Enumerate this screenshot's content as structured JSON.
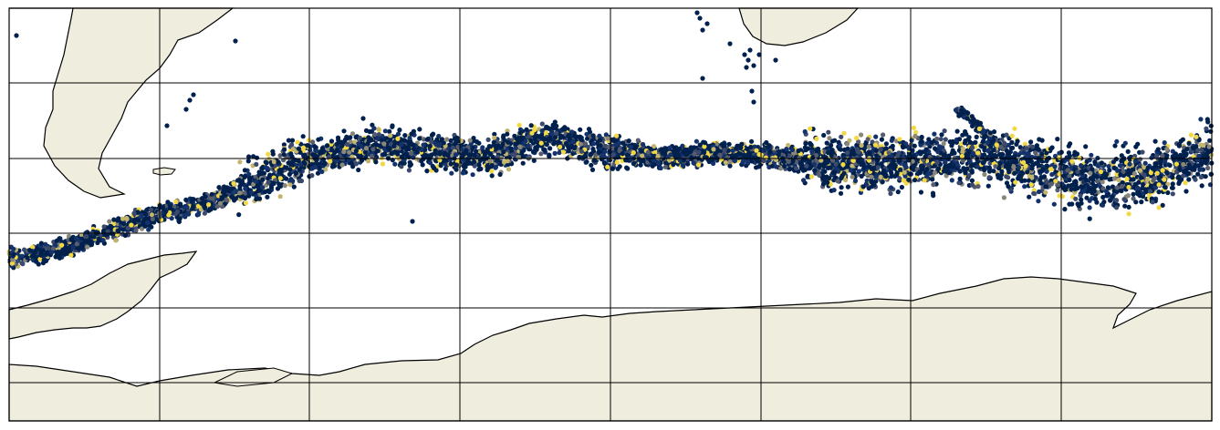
{
  "map": {
    "projection": "plate-carree",
    "grid": true,
    "grid_columns": 8,
    "grid_rows": 5,
    "colormap": "cividis",
    "colors": {
      "land": "#efedde",
      "coastline": "#000000",
      "ocean": "#ffffff",
      "gridline": "#000000",
      "palette": [
        "#00204d",
        "#14336c",
        "#3b496c",
        "#575d6d",
        "#707173",
        "#8a8779",
        "#a69d75",
        "#c4b56c",
        "#e4cf5b",
        "#f2d944"
      ]
    },
    "landmasses": [
      "south-america-tip",
      "africa-tip",
      "antarctic-peninsula",
      "antarctica"
    ],
    "scatter_regions": [
      {
        "name": "drake-passage-band",
        "count": 900
      },
      {
        "name": "scotia-arc-cluster",
        "count": 320
      },
      {
        "name": "atlantic-band",
        "count": 1500
      },
      {
        "name": "indian-ocean-band",
        "count": 1600
      },
      {
        "name": "kerguelen-cluster",
        "count": 1400
      },
      {
        "name": "isolated-points-north",
        "count": 26
      }
    ]
  }
}
